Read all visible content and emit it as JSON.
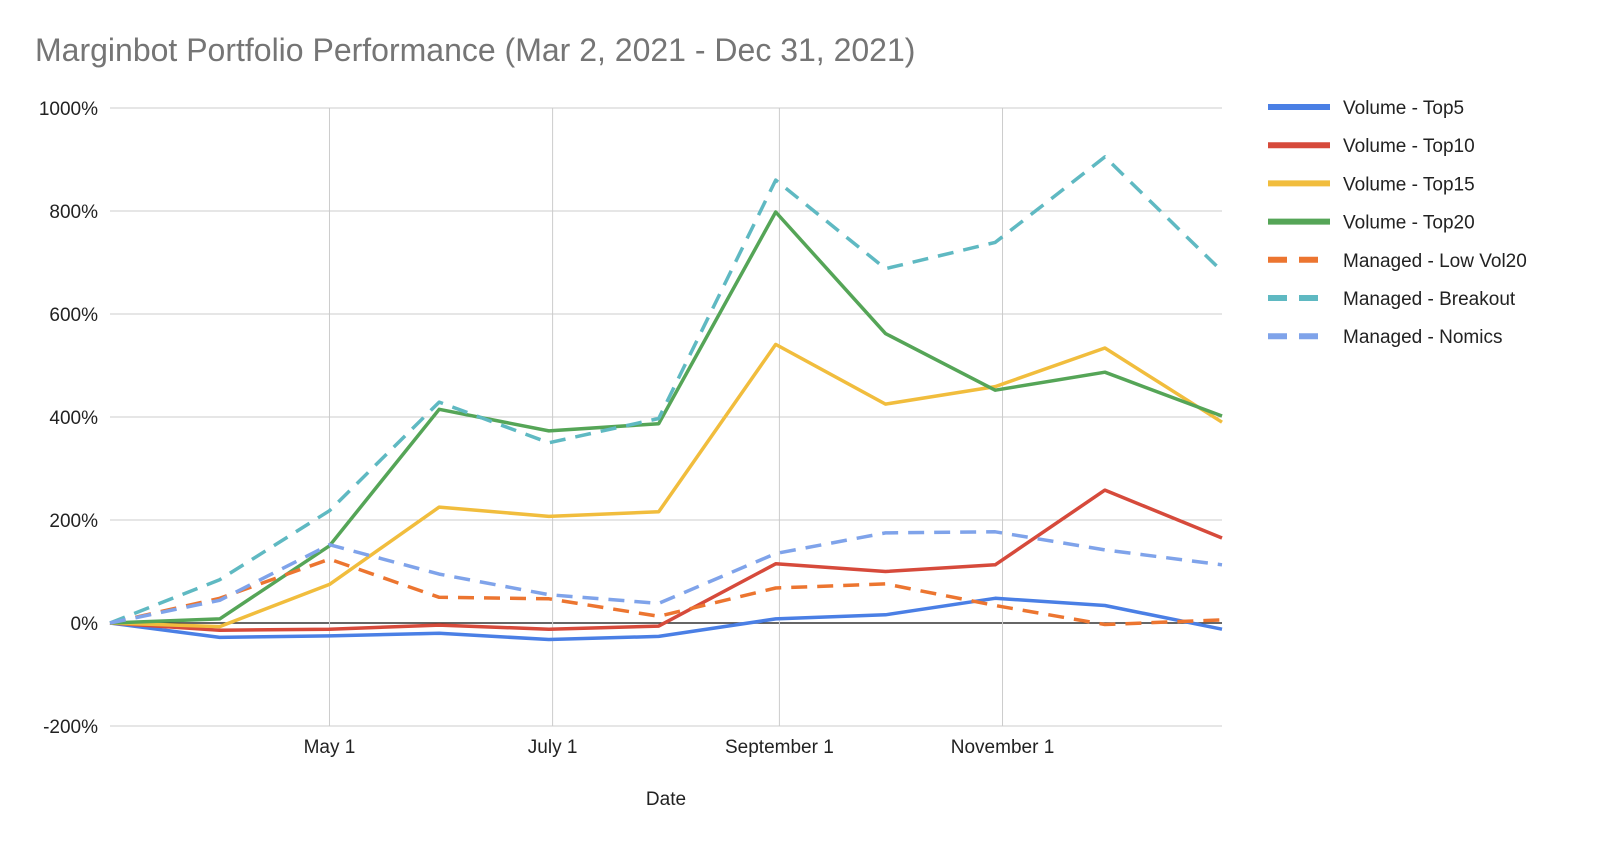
{
  "chart_data": {
    "type": "line",
    "title": "Marginbot Portfolio Performance (Mar 2, 2021 - Dec 31, 2021)",
    "xlabel": "Date",
    "ylabel": "",
    "x": [
      "2021-03-02",
      "2021-04-01",
      "2021-05-01",
      "2021-05-31",
      "2021-06-30",
      "2021-07-30",
      "2021-08-31",
      "2021-09-30",
      "2021-10-30",
      "2021-11-29",
      "2021-12-31"
    ],
    "x_range": [
      "2021-03-02",
      "2021-12-31"
    ],
    "x_ticks": [
      {
        "date": "2021-05-01",
        "label": "May 1"
      },
      {
        "date": "2021-07-01",
        "label": "July 1"
      },
      {
        "date": "2021-09-01",
        "label": "September 1"
      },
      {
        "date": "2021-11-01",
        "label": "November 1"
      }
    ],
    "ylim": [
      -200,
      1000
    ],
    "y_ticks": [
      {
        "value": 1000,
        "label": "1000%"
      },
      {
        "value": 800,
        "label": "800%"
      },
      {
        "value": 600,
        "label": "600%"
      },
      {
        "value": 400,
        "label": "400%"
      },
      {
        "value": 200,
        "label": "200%"
      },
      {
        "value": 0,
        "label": "0%"
      },
      {
        "value": -200,
        "label": "-200%"
      }
    ],
    "grid": true,
    "legend_position": "right",
    "series": [
      {
        "name": "Volume - Top5",
        "color": "#4a7fe5",
        "dashed": false,
        "values": [
          0,
          -28,
          -25,
          -20,
          -32,
          -26,
          8,
          16,
          48,
          34,
          -12
        ]
      },
      {
        "name": "Volume - Top10",
        "color": "#d64a3b",
        "dashed": false,
        "values": [
          0,
          -14,
          -12,
          -4,
          -12,
          -6,
          115,
          100,
          113,
          258,
          165
        ]
      },
      {
        "name": "Volume - Top15",
        "color": "#f1bd3d",
        "dashed": false,
        "values": [
          0,
          -7,
          75,
          225,
          207,
          216,
          541,
          425,
          459,
          534,
          390
        ]
      },
      {
        "name": "Volume - Top20",
        "color": "#55a557",
        "dashed": false,
        "values": [
          0,
          8,
          150,
          415,
          373,
          387,
          798,
          562,
          452,
          487,
          402
        ]
      },
      {
        "name": "Managed - Low Vol20",
        "color": "#ec7530",
        "dashed": true,
        "values": [
          0,
          48,
          124,
          50,
          47,
          13,
          68,
          76,
          34,
          -3,
          6
        ]
      },
      {
        "name": "Managed - Breakout",
        "color": "#5fb9c2",
        "dashed": true,
        "values": [
          0,
          84,
          218,
          429,
          350,
          397,
          860,
          688,
          739,
          905,
          683
        ]
      },
      {
        "name": "Managed - Nomics",
        "color": "#7fa3ea",
        "dashed": true,
        "values": [
          0,
          44,
          152,
          95,
          55,
          38,
          135,
          175,
          177,
          142,
          113
        ]
      }
    ]
  }
}
